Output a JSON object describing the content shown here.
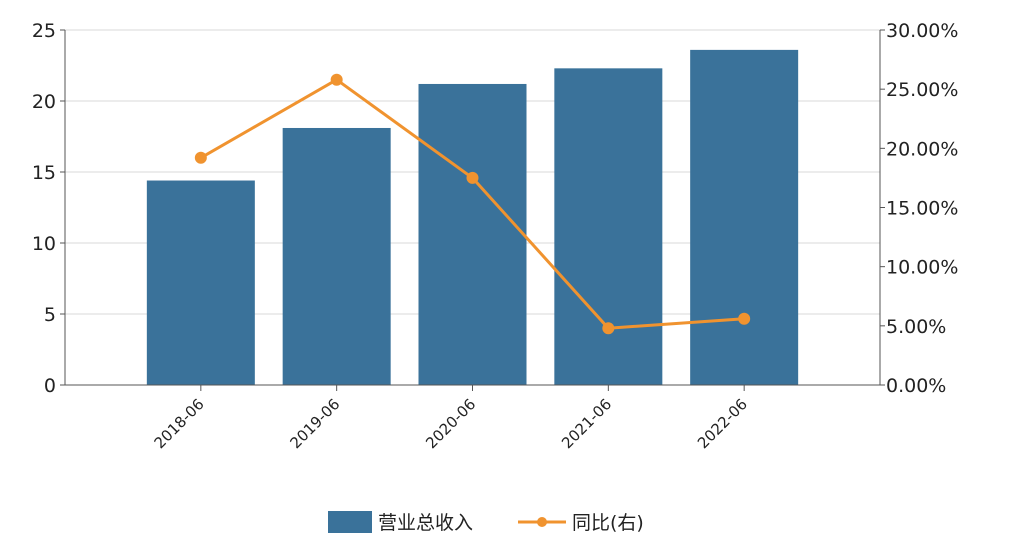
{
  "chart_data": {
    "type": "bar",
    "categories": [
      "2018-06",
      "2019-06",
      "2020-06",
      "2021-06",
      "2022-06"
    ],
    "series": [
      {
        "name": "营业总收入",
        "type": "bar",
        "axis": "left",
        "color": "#3a729a",
        "values": [
          14.4,
          18.1,
          21.2,
          22.3,
          23.6
        ]
      },
      {
        "name": "同比(右)",
        "type": "line",
        "axis": "right",
        "color": "#f0932f",
        "values": [
          19.2,
          25.8,
          17.5,
          4.8,
          5.6
        ]
      }
    ],
    "left_axis": {
      "ylim": [
        0,
        25
      ],
      "ticks": [
        "0",
        "5",
        "10",
        "15",
        "20",
        "25"
      ]
    },
    "right_axis": {
      "ylim": [
        0,
        30
      ],
      "ticks": [
        "0.00%",
        "5.00%",
        "10.00%",
        "15.00%",
        "20.00%",
        "25.00%",
        "30.00%"
      ]
    },
    "grid": true,
    "legend_position": "bottom-center"
  }
}
